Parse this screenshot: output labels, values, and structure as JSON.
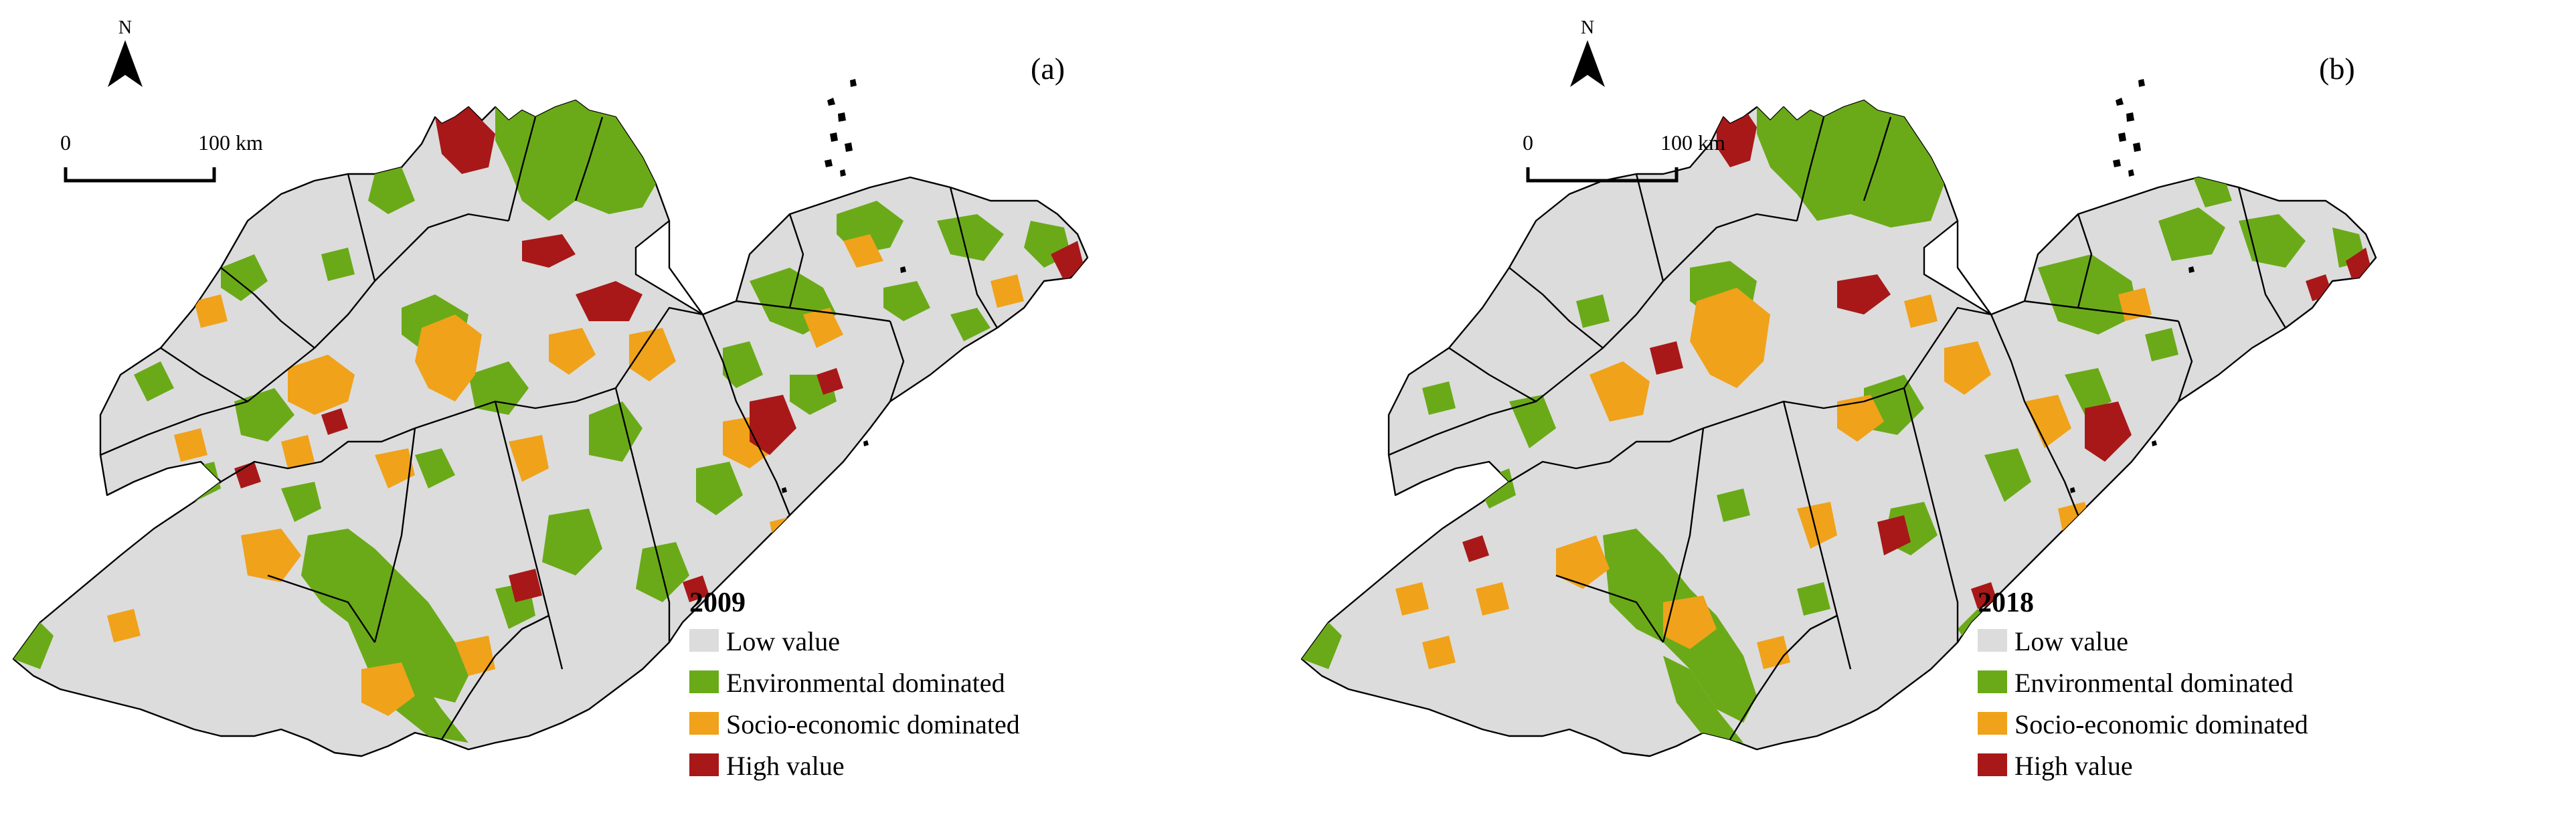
{
  "colors": {
    "low": "#dcdcdc",
    "environmental": "#6aaa18",
    "socio": "#f0a21a",
    "high": "#a81818",
    "boundary": "#000000"
  },
  "north_arrow": {
    "label": "N",
    "icon": "north-arrow-icon"
  },
  "scale_bar": {
    "start": "0",
    "end": "100 km"
  },
  "legend": {
    "items": [
      {
        "key": "low",
        "label": "Low value"
      },
      {
        "key": "environmental",
        "label": "Environmental dominated"
      },
      {
        "key": "socio",
        "label": "Socio-economic dominated"
      },
      {
        "key": "high",
        "label": "High value"
      }
    ]
  },
  "panels": [
    {
      "id": "a",
      "label": "(a)",
      "year": "2009"
    },
    {
      "id": "b",
      "label": "(b)",
      "year": "2018"
    }
  ]
}
